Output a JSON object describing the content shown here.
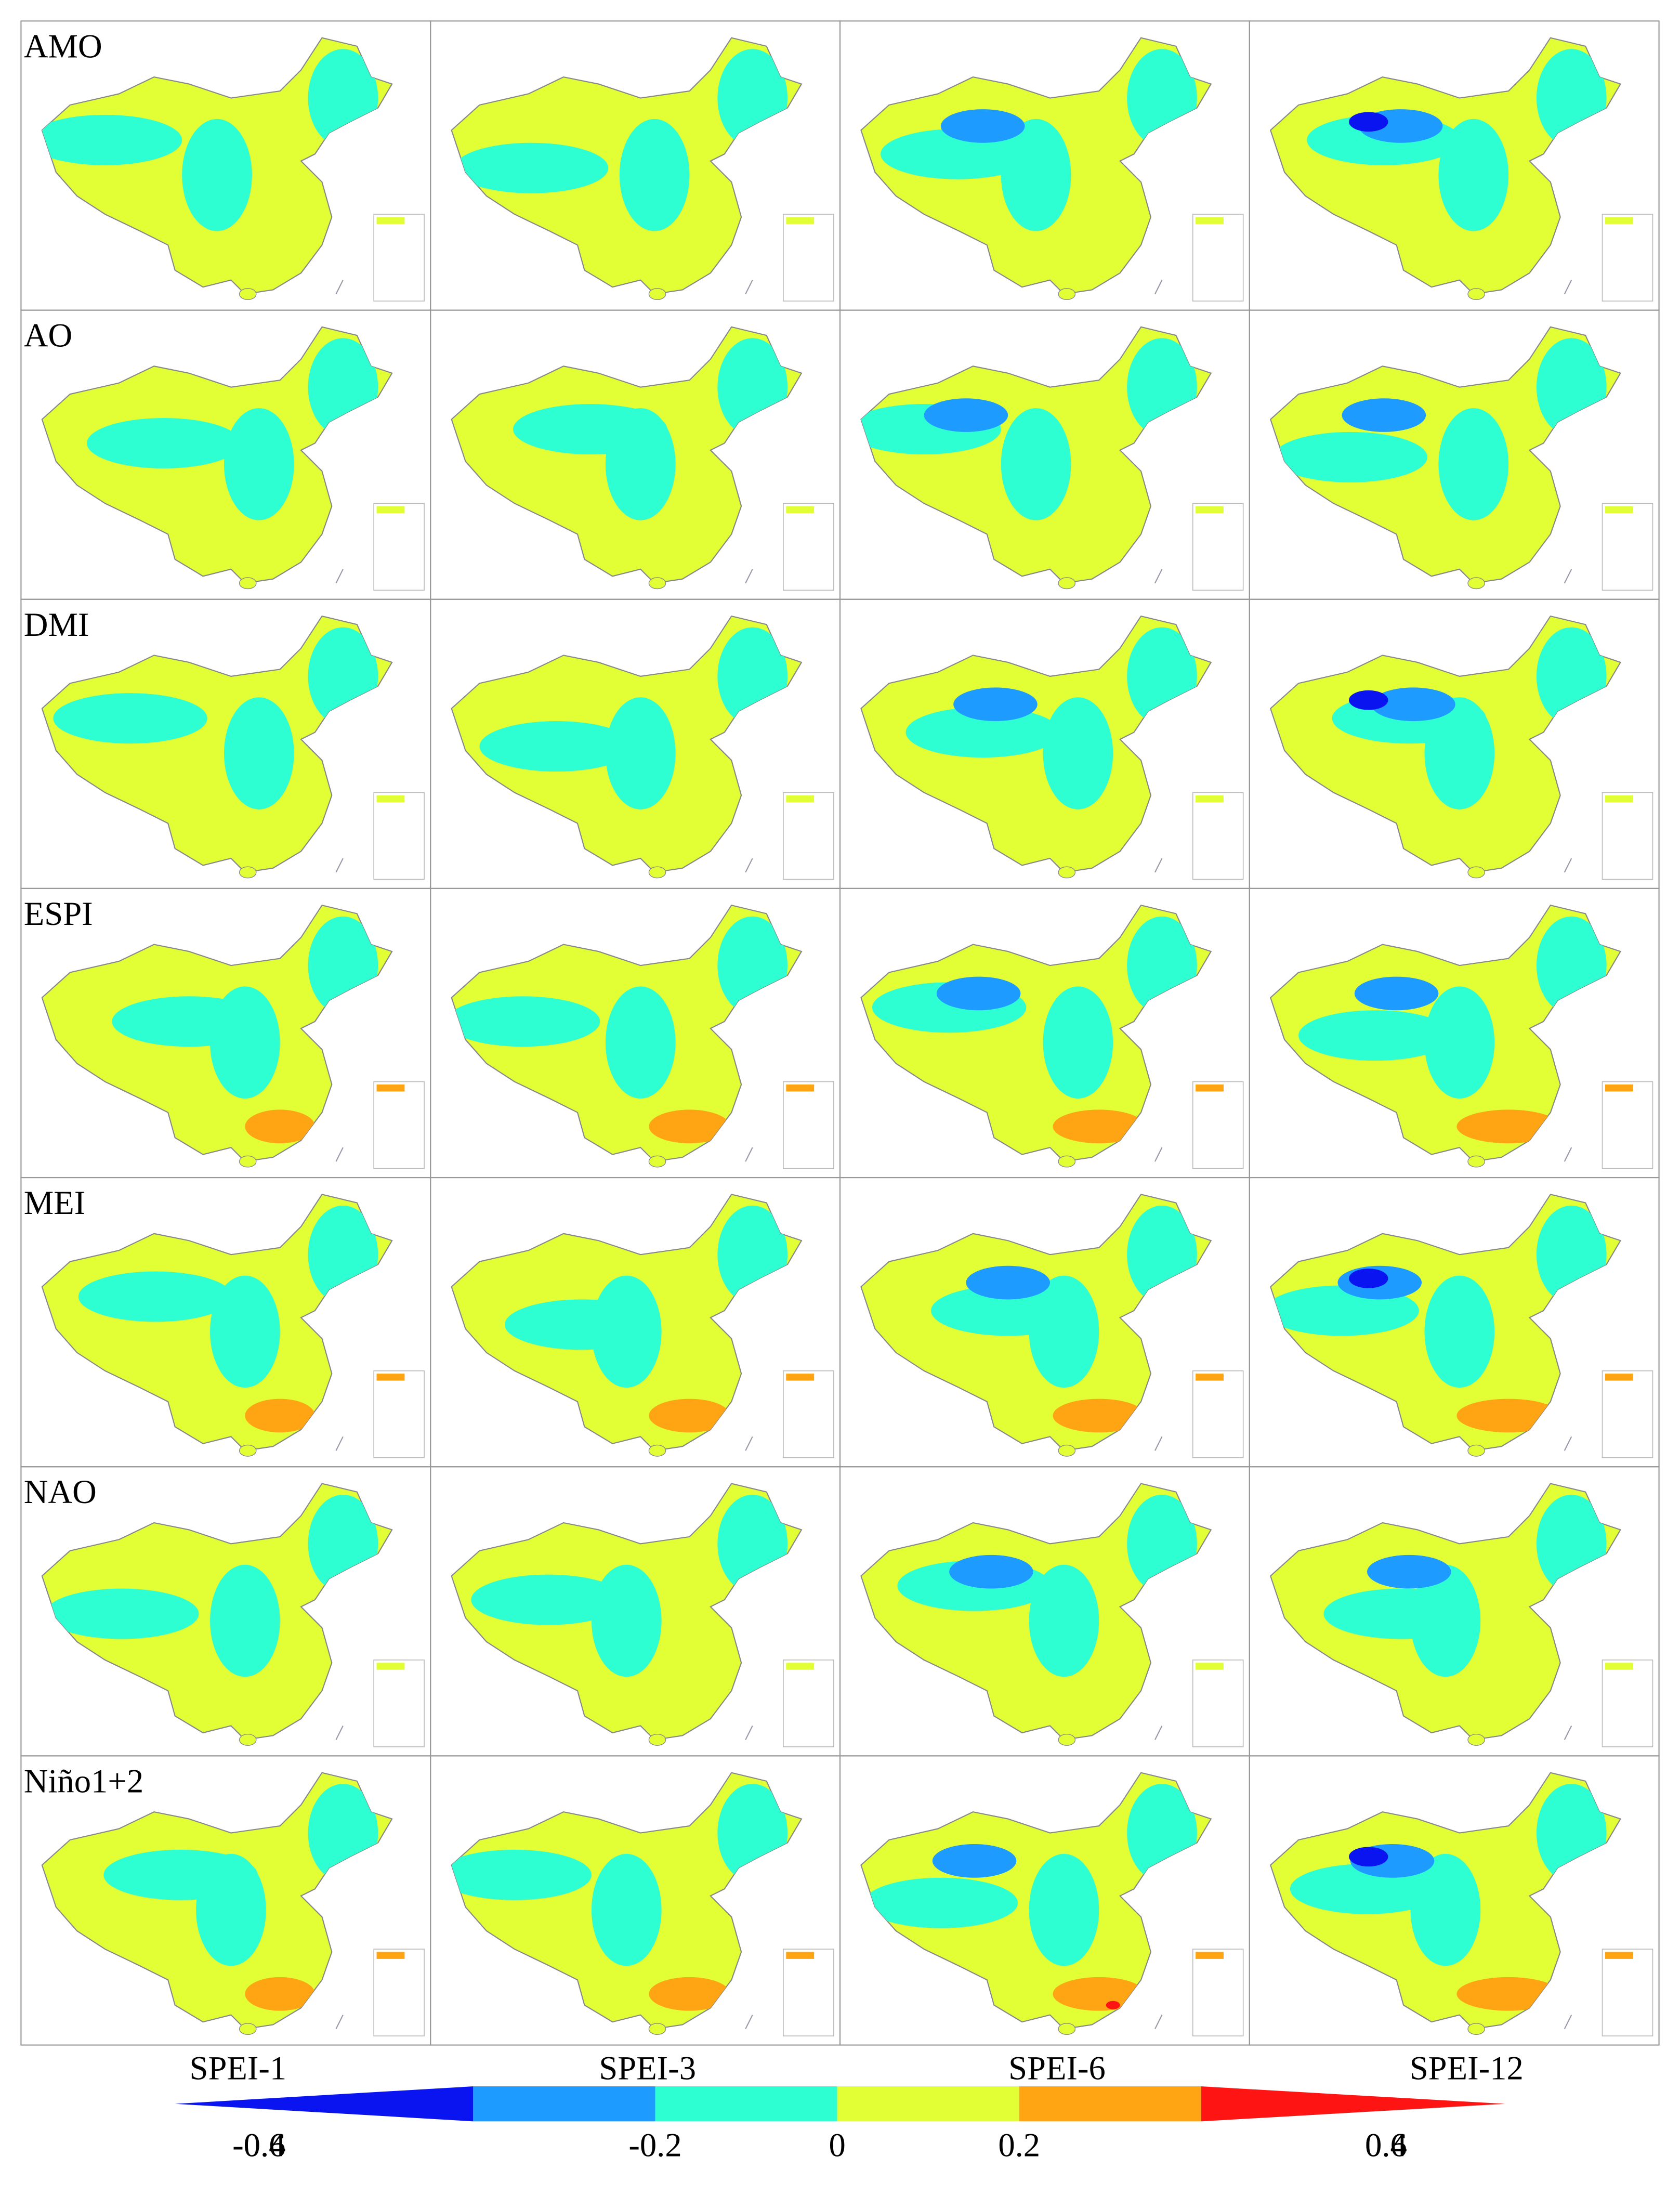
{
  "rows": [
    "AMO",
    "AO",
    "DMI",
    "ESPI",
    "MEI",
    "NAO",
    "Niño1+2"
  ],
  "columns": [
    "SPEI-1",
    "SPEI-3",
    "SPEI-6",
    "SPEI-12"
  ],
  "colorbar": {
    "bounds": [
      -0.6,
      -0.4,
      -0.2,
      0,
      0.2,
      0.4,
      0.6
    ],
    "colors": [
      "#0a14f0",
      "#1e9bff",
      "#2effd2",
      "#e2ff36",
      "#ffa514",
      "#ff1414"
    ],
    "ticks": [
      -0.6,
      -0.4,
      -0.2,
      0,
      0.2,
      0.4,
      0.6
    ]
  }
}
